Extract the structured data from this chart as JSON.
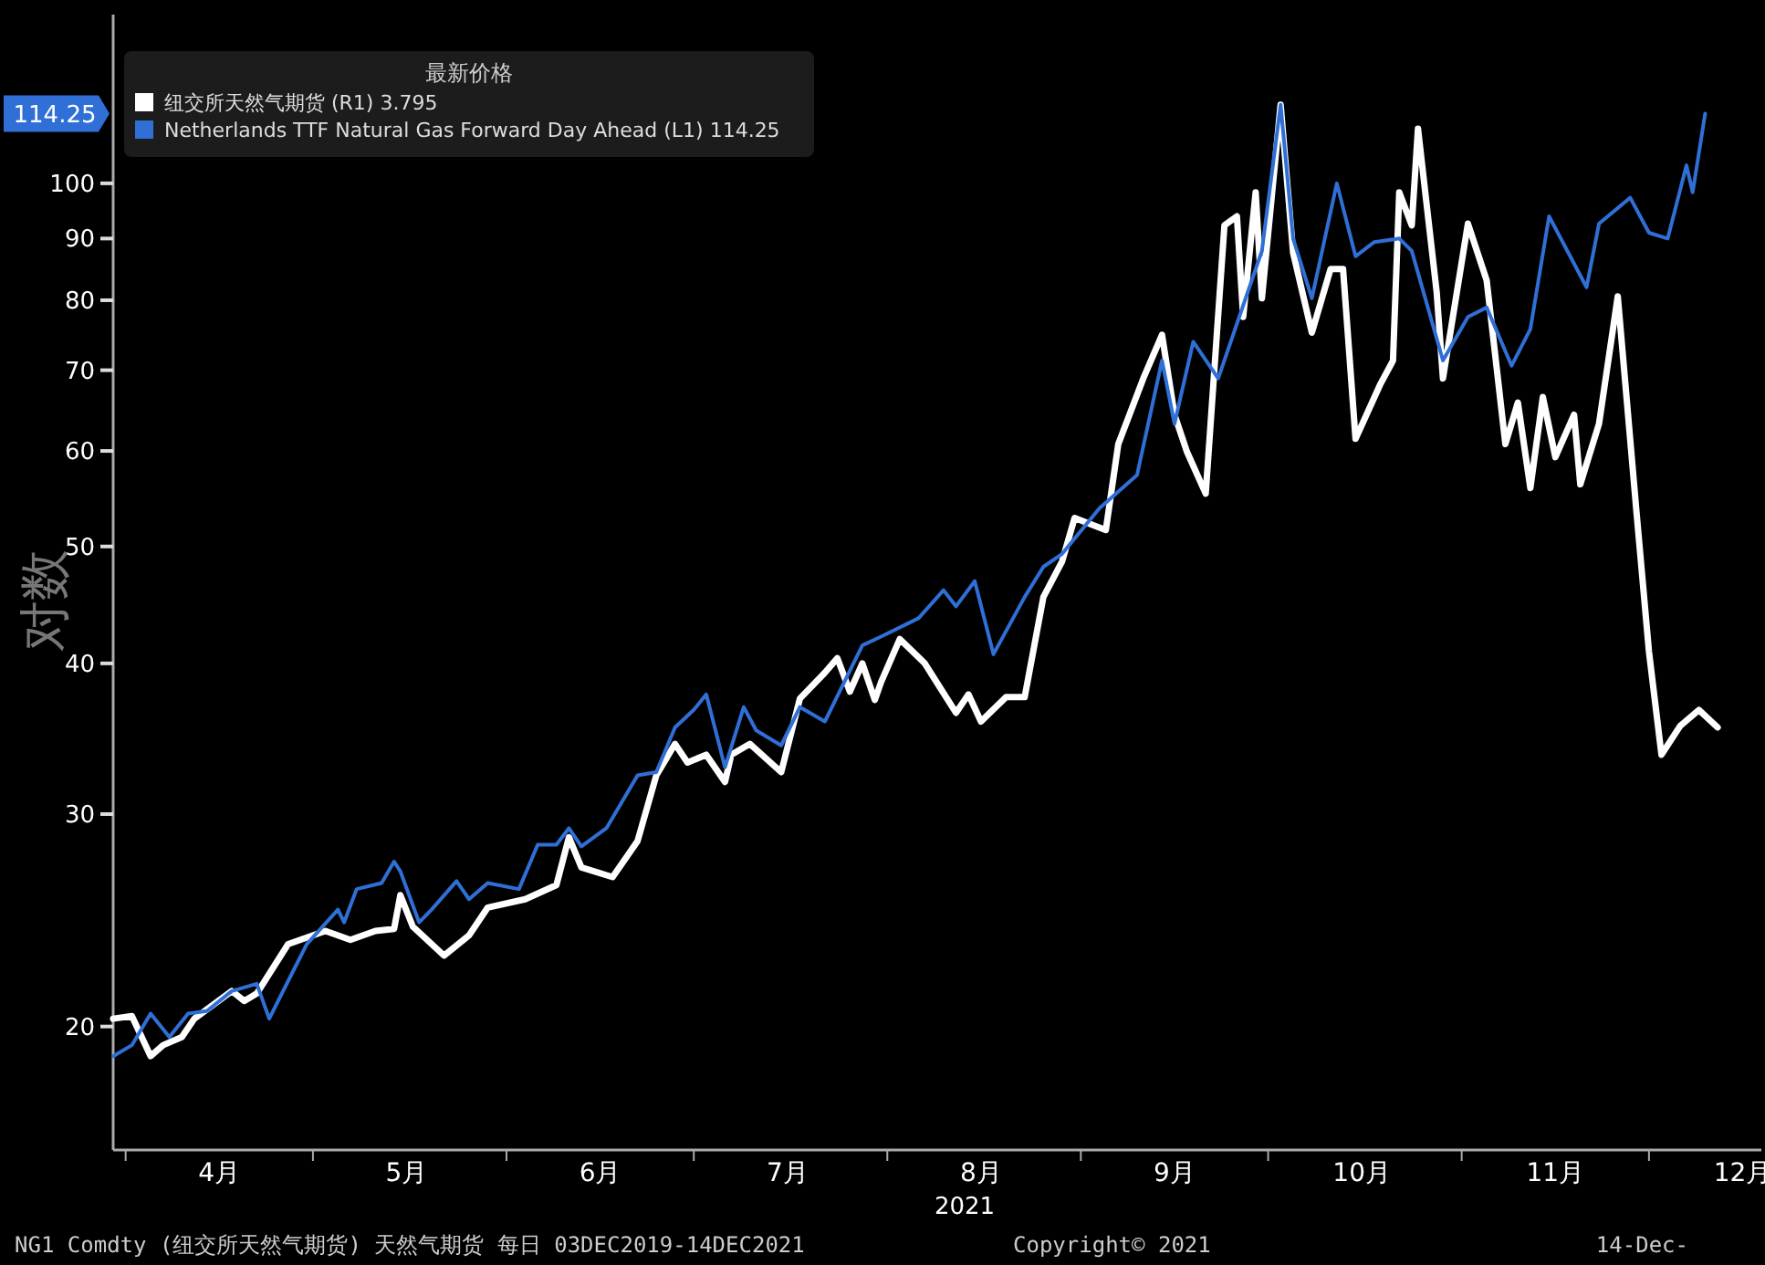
{
  "chart_data": {
    "type": "line",
    "ylabel": "对数",
    "xlabel": "2021",
    "legend_title": "最新价格",
    "legend": "top left",
    "log": true,
    "grid": false,
    "xlim": [
      "2021-03-30",
      "2021-12-19"
    ],
    "xticks": [
      {
        "value": "2021-04-01",
        "label": null
      },
      {
        "value": "2021-04-16",
        "label": "4月"
      },
      {
        "value": "2021-05-01",
        "label": null
      },
      {
        "value": "2021-05-16",
        "label": "5月"
      },
      {
        "value": "2021-06-01",
        "label": null
      },
      {
        "value": "2021-06-16",
        "label": "6月"
      },
      {
        "value": "2021-07-01",
        "label": null
      },
      {
        "value": "2021-07-16",
        "label": "7月"
      },
      {
        "value": "2021-08-01",
        "label": null
      },
      {
        "value": "2021-08-16",
        "label": "8月"
      },
      {
        "value": "2021-09-01",
        "label": null
      },
      {
        "value": "2021-09-16",
        "label": "9月"
      },
      {
        "value": "2021-10-01",
        "label": null
      },
      {
        "value": "2021-10-16",
        "label": "10月"
      },
      {
        "value": "2021-11-01",
        "label": null
      },
      {
        "value": "2021-11-16",
        "label": "11月"
      },
      {
        "value": "2021-12-01",
        "label": null
      },
      {
        "value": "2021-12-16",
        "label": "12月"
      }
    ],
    "ylim": [
      15.8,
      138
    ],
    "yticks": [
      20,
      30,
      40,
      50,
      60,
      70,
      80,
      90,
      100
    ],
    "series": [
      {
        "name": "纽交所天然气期货 (R1) 3.795",
        "color": "#ffffff",
        "x": [
          "2021-03-30",
          "2021-04-02",
          "2021-04-05",
          "2021-04-07",
          "2021-04-10",
          "2021-04-12",
          "2021-04-18",
          "2021-04-20",
          "2021-04-22",
          "2021-04-27",
          "2021-05-03",
          "2021-05-07",
          "2021-05-11",
          "2021-05-14",
          "2021-05-15",
          "2021-05-17",
          "2021-05-22",
          "2021-05-26",
          "2021-05-29",
          "2021-06-04",
          "2021-06-09",
          "2021-06-11",
          "2021-06-13",
          "2021-06-18",
          "2021-06-22",
          "2021-06-25",
          "2021-06-28",
          "2021-06-30",
          "2021-07-03",
          "2021-07-06",
          "2021-07-07",
          "2021-07-10",
          "2021-07-15",
          "2021-07-18",
          "2021-07-22",
          "2021-07-24",
          "2021-07-26",
          "2021-07-28",
          "2021-07-30",
          "2021-07-31",
          "2021-08-03",
          "2021-08-07",
          "2021-08-12",
          "2021-08-14",
          "2021-08-16",
          "2021-08-20",
          "2021-08-23",
          "2021-08-26",
          "2021-08-29",
          "2021-08-31",
          "2021-09-05",
          "2021-09-07",
          "2021-09-11",
          "2021-09-14",
          "2021-09-16",
          "2021-09-18",
          "2021-09-21",
          "2021-09-24",
          "2021-09-26",
          "2021-09-27",
          "2021-09-29",
          "2021-09-30",
          "2021-10-03",
          "2021-10-05",
          "2021-10-08",
          "2021-10-11",
          "2021-10-13",
          "2021-10-15",
          "2021-10-19",
          "2021-10-21",
          "2021-10-22",
          "2021-10-24",
          "2021-10-25",
          "2021-10-28",
          "2021-10-29",
          "2021-11-02",
          "2021-11-05",
          "2021-11-08",
          "2021-11-10",
          "2021-11-12",
          "2021-11-14",
          "2021-11-16",
          "2021-11-19",
          "2021-11-20",
          "2021-11-23",
          "2021-11-26",
          "2021-11-29",
          "2021-12-01",
          "2021-12-03",
          "2021-12-06",
          "2021-12-09",
          "2021-12-12"
        ],
        "values": [
          20.3,
          20.4,
          18.9,
          19.3,
          19.6,
          20.3,
          21.4,
          21.0,
          21.3,
          23.4,
          24.0,
          23.6,
          24.0,
          24.1,
          25.7,
          24.2,
          22.9,
          23.8,
          25.1,
          25.5,
          26.2,
          28.7,
          27.1,
          26.6,
          28.5,
          32.3,
          34.3,
          33.1,
          33.6,
          31.9,
          33.6,
          34.3,
          32.5,
          37.4,
          39.3,
          40.4,
          37.9,
          40.0,
          37.3,
          38.6,
          41.9,
          40.0,
          36.4,
          37.7,
          35.8,
          37.5,
          37.5,
          45.4,
          48.6,
          52.8,
          51.6,
          60.8,
          68.9,
          74.9,
          64.3,
          59.9,
          55.3,
          92.3,
          93.9,
          77.5,
          98.3,
          80.3,
          116.2,
          87.6,
          75.2,
          84.9,
          84.9,
          61.4,
          68.2,
          71.3,
          98.3,
          92.3,
          111,
          81.2,
          68.9,
          92.6,
          83.1,
          60.8,
          65.8,
          55.9,
          66.5,
          59.3,
          64.3,
          56.3,
          63.2,
          80.6,
          53.4,
          40.9,
          33.6,
          35.5,
          36.6,
          35.4
        ]
      },
      {
        "name": "Netherlands TTF Natural Gas Forward Day Ahead (L1) 114.25",
        "color": "#2f6fd6",
        "x": [
          "2021-03-30",
          "2021-04-02",
          "2021-04-05",
          "2021-04-08",
          "2021-04-11",
          "2021-04-14",
          "2021-04-18",
          "2021-04-22",
          "2021-04-24",
          "2021-04-27",
          "2021-04-30",
          "2021-05-05",
          "2021-05-06",
          "2021-05-08",
          "2021-05-12",
          "2021-05-14",
          "2021-05-15",
          "2021-05-18",
          "2021-05-20",
          "2021-05-24",
          "2021-05-26",
          "2021-05-29",
          "2021-06-03",
          "2021-06-06",
          "2021-06-09",
          "2021-06-11",
          "2021-06-13",
          "2021-06-17",
          "2021-06-22",
          "2021-06-25",
          "2021-06-28",
          "2021-07-01",
          "2021-07-03",
          "2021-07-06",
          "2021-07-09",
          "2021-07-11",
          "2021-07-15",
          "2021-07-18",
          "2021-07-22",
          "2021-07-28",
          "2021-07-31",
          "2021-08-06",
          "2021-08-10",
          "2021-08-12",
          "2021-08-15",
          "2021-08-18",
          "2021-08-23",
          "2021-08-26",
          "2021-08-29",
          "2021-09-04",
          "2021-09-10",
          "2021-09-14",
          "2021-09-16",
          "2021-09-19",
          "2021-09-23",
          "2021-09-27",
          "2021-09-30",
          "2021-10-03",
          "2021-10-05",
          "2021-10-08",
          "2021-10-12",
          "2021-10-15",
          "2021-10-18",
          "2021-10-22",
          "2021-10-24",
          "2021-10-29",
          "2021-11-02",
          "2021-11-05",
          "2021-11-09",
          "2021-11-12",
          "2021-11-15",
          "2021-11-21",
          "2021-11-23",
          "2021-11-28",
          "2021-12-01",
          "2021-12-04",
          "2021-12-07",
          "2021-12-08",
          "2021-12-10"
        ],
        "values": [
          18.9,
          19.3,
          20.5,
          19.6,
          20.5,
          20.6,
          21.4,
          21.7,
          20.3,
          21.8,
          23.4,
          25.0,
          24.4,
          26.0,
          26.3,
          27.4,
          26.9,
          24.4,
          25.0,
          26.4,
          25.5,
          26.3,
          26.0,
          28.3,
          28.3,
          29.2,
          28.2,
          29.2,
          32.3,
          32.5,
          35.4,
          36.6,
          37.7,
          32.8,
          36.8,
          35.2,
          34.2,
          36.8,
          35.8,
          41.4,
          42.1,
          43.6,
          46.0,
          44.6,
          46.8,
          40.7,
          45.4,
          48.1,
          49.3,
          53.8,
          57.3,
          71.3,
          63.2,
          73.9,
          68.9,
          79.2,
          87.9,
          116.2,
          90,
          80.3,
          100,
          87.0,
          89.4,
          90.0,
          87.9,
          71.3,
          77.5,
          78.9,
          70.6,
          75.7,
          93.9,
          82.0,
          92.6,
          97.3,
          91,
          90,
          103.5,
          98.3,
          114.25
        ]
      }
    ],
    "annotations": [
      "114.25",
      "NG1 Comdty (纽交所天然气期货) 天然气期货  每日 03DEC2019-14DEC2021",
      "Copyright© 2021",
      "14-Dec-"
    ]
  }
}
